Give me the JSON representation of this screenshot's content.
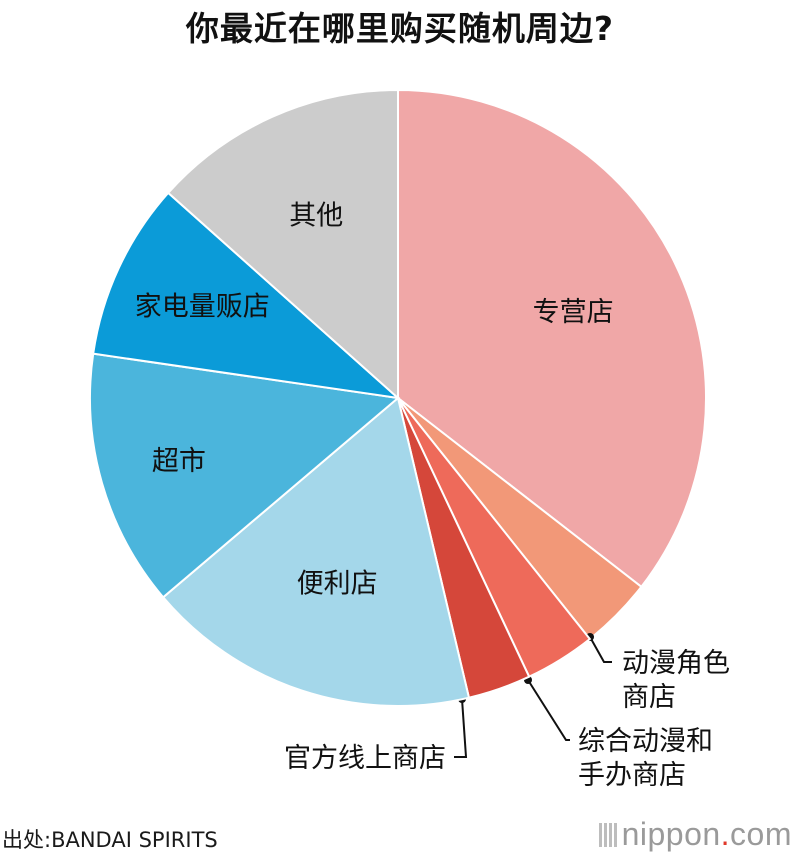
{
  "title": "你最近在哪里购买随机周边?",
  "source": "出处:BANDAI SPIRITS",
  "logo": {
    "name": "nippon",
    "dot": ".",
    "tld": "com",
    "dot_color": "#e0392b"
  },
  "chart_data": {
    "type": "pie",
    "start": "12 o'clock",
    "direction": "clockwise",
    "title": "你最近在哪里购买随机周边?",
    "slices": [
      {
        "label": "专营店",
        "value": 35.5,
        "color": "#f0a7a7"
      },
      {
        "label": "动漫角色\n商店",
        "value": 3.8,
        "color": "#f29878"
      },
      {
        "label": "综合动漫和\n手办商店",
        "value": 3.7,
        "color": "#ee6a5a"
      },
      {
        "label": "官方线上商店",
        "value": 3.3,
        "color": "#d5473a"
      },
      {
        "label": "便利店",
        "value": 17.5,
        "color": "#a4d7ea"
      },
      {
        "label": "超市",
        "value": 13.5,
        "color": "#4bb5dc"
      },
      {
        "label": "家电量贩店",
        "value": 9.3,
        "color": "#0b9bd8"
      },
      {
        "label": "其他",
        "value": 13.4,
        "color": "#cccccc"
      }
    ]
  }
}
